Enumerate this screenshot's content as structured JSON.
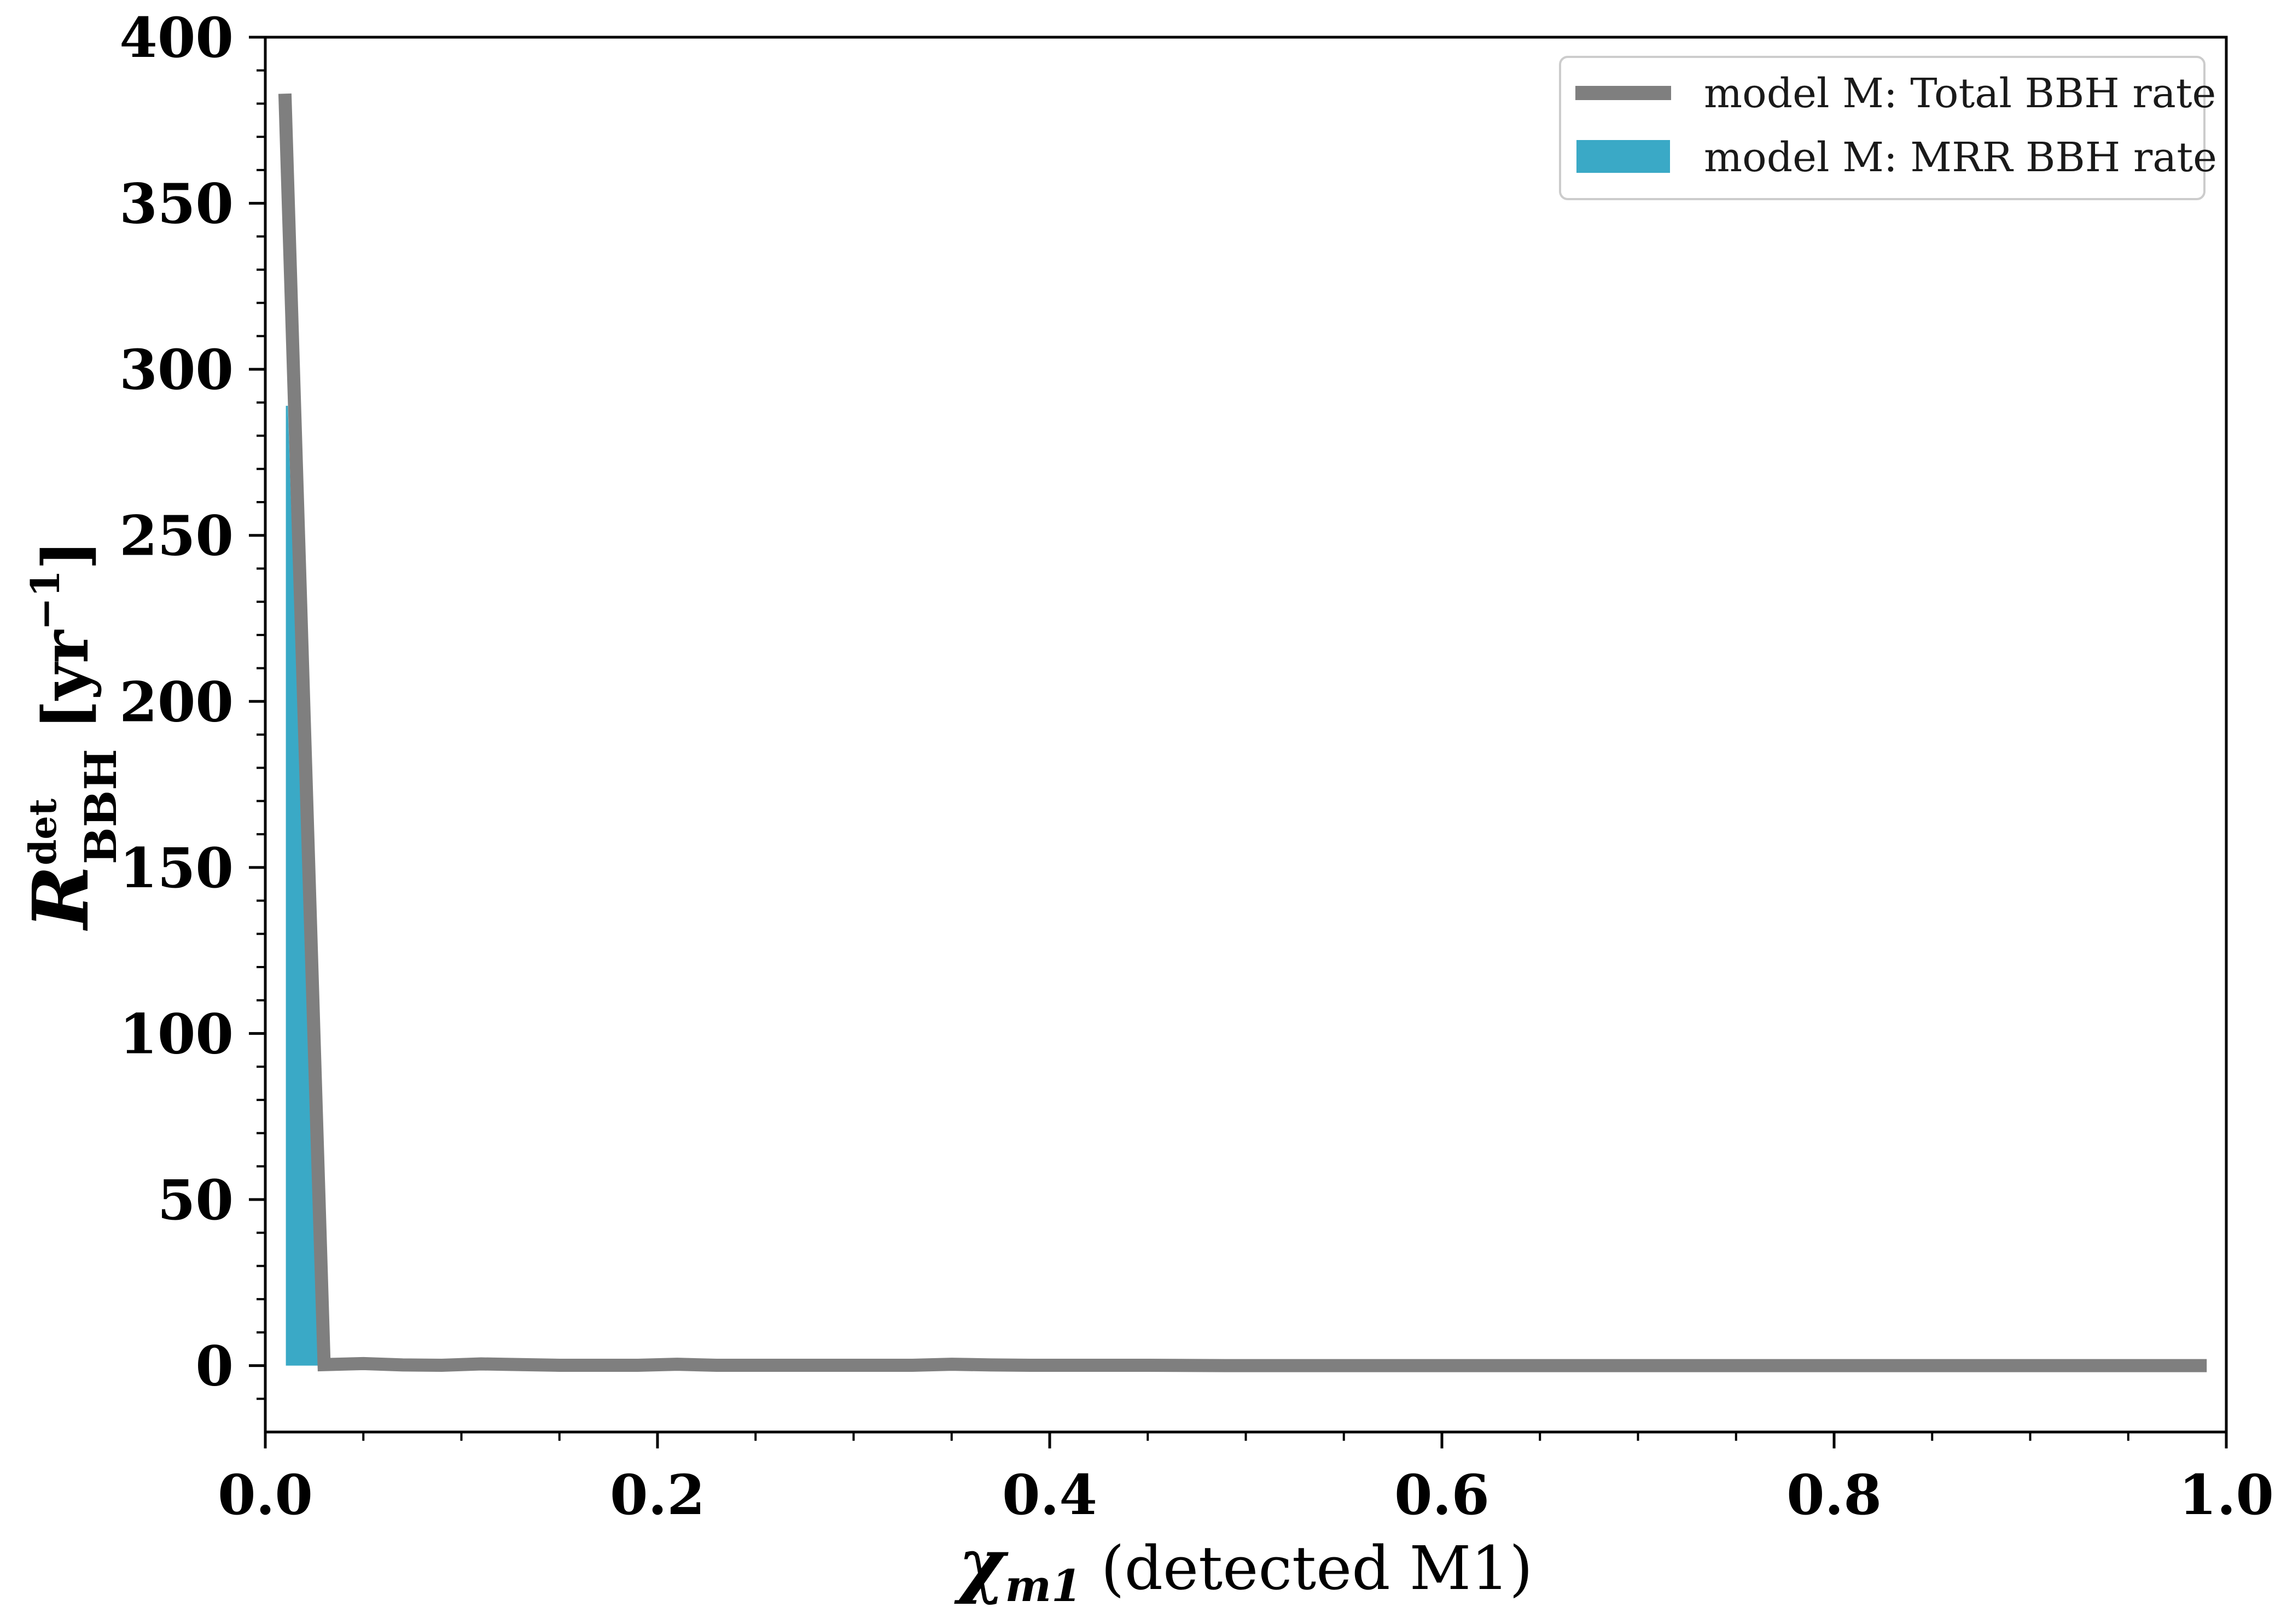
{
  "chart_data": {
    "type": "line",
    "xlabel_symbol": "χ",
    "xlabel_subscript": "m1",
    "xlabel_text": "(detected M1)",
    "ylabel_symbol": "R",
    "ylabel_subscript": "BBH",
    "ylabel_superscript": "det",
    "ylabel_units": "[yr",
    "ylabel_units_exp": "−1",
    "ylabel_units_close": "]",
    "xlim": [
      0.0,
      1.0
    ],
    "ylim": [
      -20,
      400
    ],
    "x_ticks": [
      0.0,
      0.2,
      0.4,
      0.6,
      0.8,
      1.0
    ],
    "x_tick_labels": [
      "0.0",
      "0.2",
      "0.4",
      "0.6",
      "0.8",
      "1.0"
    ],
    "y_ticks": [
      0,
      50,
      100,
      150,
      200,
      250,
      300,
      350,
      400
    ],
    "y_tick_labels": [
      "0",
      "50",
      "100",
      "150",
      "200",
      "250",
      "300",
      "350",
      "400"
    ],
    "legend_position": "top-right",
    "grid": false,
    "series": [
      {
        "name": "model M: Total BBH rate",
        "kind": "line",
        "color": "#7f7f7f",
        "x": [
          0.01,
          0.03,
          0.05,
          0.07,
          0.09,
          0.11,
          0.13,
          0.15,
          0.17,
          0.19,
          0.21,
          0.23,
          0.25,
          0.27,
          0.29,
          0.31,
          0.33,
          0.35,
          0.37,
          0.39,
          0.41,
          0.45,
          0.49,
          0.55,
          0.61,
          0.69,
          0.79,
          0.89,
          0.99
        ],
        "y": [
          383,
          0.3,
          0.6,
          0.2,
          0.1,
          0.5,
          0.3,
          0.1,
          0.1,
          0.1,
          0.4,
          0.1,
          0.1,
          0.1,
          0.1,
          0.1,
          0.1,
          0.4,
          0.2,
          0.1,
          0.1,
          0.1,
          0.0,
          0.0,
          0.0,
          0.0,
          0.0,
          0.0,
          0.0
        ]
      },
      {
        "name": "model M: MRR BBH rate",
        "kind": "area",
        "color": "#3aa9c6",
        "x": [
          0.0105,
          0.0105,
          0.0115,
          0.028,
          0.028
        ],
        "y": [
          0,
          289,
          289,
          0,
          0
        ]
      }
    ]
  }
}
